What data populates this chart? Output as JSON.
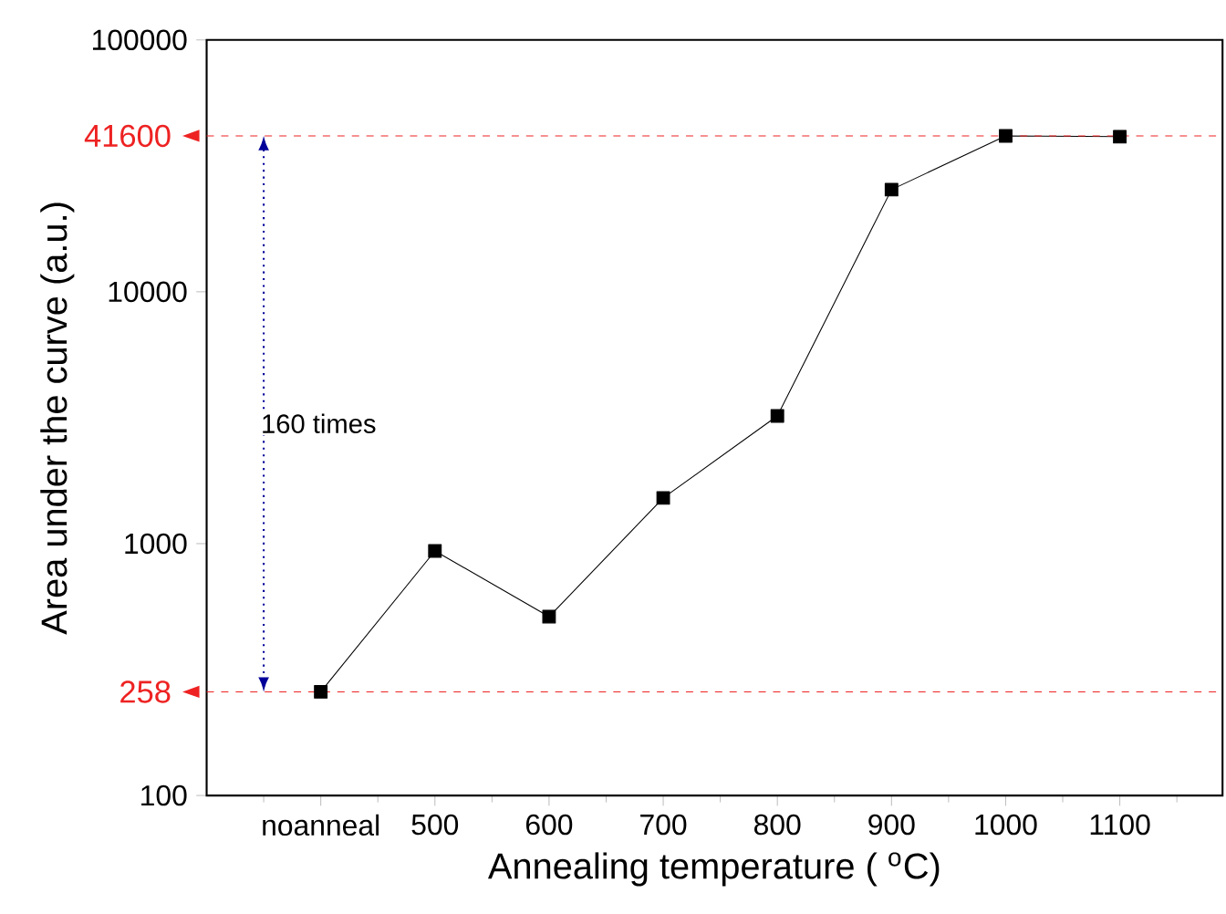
{
  "chart_data": {
    "type": "line",
    "xlabel": "Annealing temperature ( $^{o}$C)",
    "ylabel": "Area under the curve (a.u.)",
    "categories": [
      "noanneal",
      "500",
      "600",
      "700",
      "800",
      "900",
      "1000",
      "1100"
    ],
    "series": [
      {
        "color": "#000000",
        "values": [
          258,
          935,
          513,
          1518,
          3215,
          25450,
          41600,
          41300
        ]
      }
    ],
    "log": "y",
    "ylim": [
      100,
      100000
    ],
    "yticks": [
      100,
      1000,
      10000,
      100000
    ],
    "marker": "square",
    "line_style": "solid",
    "grid": false,
    "ref_lines": [
      {
        "axis": "y",
        "value": 41600,
        "label": "41600",
        "color": "#ee2222",
        "line_style": "dashed"
      },
      {
        "axis": "y",
        "value": 258,
        "label": "258",
        "color": "#ee2222",
        "line_style": "dashed"
      }
    ],
    "annotations": [
      "160 times"
    ]
  }
}
